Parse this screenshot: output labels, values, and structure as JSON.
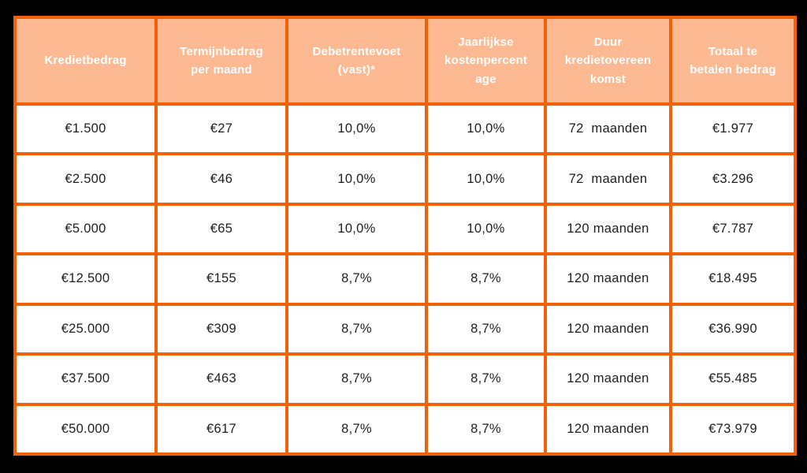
{
  "colors": {
    "page_bg": "#000000",
    "border": "#F2600A",
    "header_bg": "#FCB992",
    "header_text": "#FFFFFF",
    "cell_bg": "#FFFFFF",
    "cell_text": "#1E1E1E"
  },
  "chart_data": {
    "type": "table",
    "title": "",
    "columns": [
      {
        "label": "Kredietbedrag",
        "display": "Kredietbedrag"
      },
      {
        "label": "Termijnbedrag per maand",
        "display": "Termijnbedrag\nper maand"
      },
      {
        "label": "Debetrentevoet (vast)*",
        "display": "Debetrentevoet\n(vast)*"
      },
      {
        "label": "Jaarlijkse kostenpercentage",
        "display": "Jaarlijkse\nkostenpercent\nage"
      },
      {
        "label": "Duur kredietovereenkomst",
        "display": "Duur\nkredietovereen\nkomst"
      },
      {
        "label": "Totaal te betalen bedrag",
        "display": "Totaal te\nbetalen bedrag"
      }
    ],
    "rows": [
      [
        "€1.500",
        "€27",
        "10,0%",
        "10,0%",
        "72  maanden",
        "€1.977"
      ],
      [
        "€2.500",
        "€46",
        "10,0%",
        "10,0%",
        "72  maanden",
        "€3.296"
      ],
      [
        "€5.000",
        "€65",
        "10,0%",
        "10,0%",
        "120 maanden",
        "€7.787"
      ],
      [
        "€12.500",
        "€155",
        "8,7%",
        "8,7%",
        "120 maanden",
        "€18.495"
      ],
      [
        "€25.000",
        "€309",
        "8,7%",
        "8,7%",
        "120 maanden",
        "€36.990"
      ],
      [
        "€37.500",
        "€463",
        "8,7%",
        "8,7%",
        "120 maanden",
        "€55.485"
      ],
      [
        "€50.000",
        "€617",
        "8,7%",
        "8,7%",
        "120 maanden",
        "€73.979"
      ]
    ]
  }
}
